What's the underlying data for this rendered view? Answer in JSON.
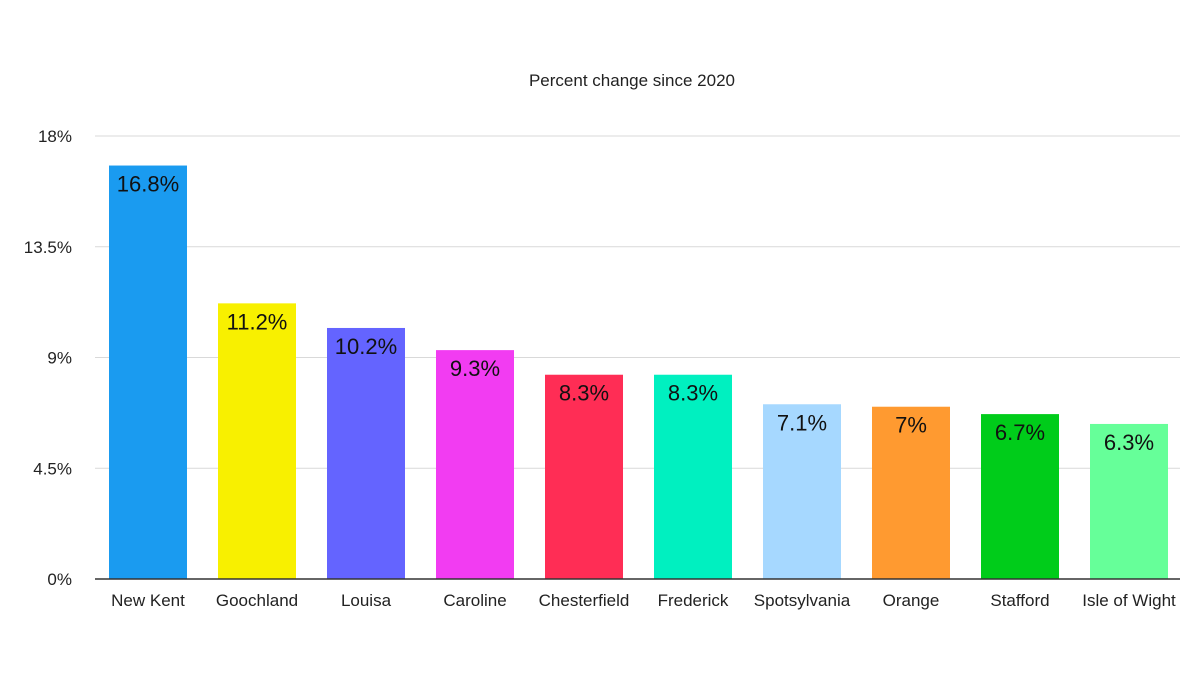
{
  "chart_data": {
    "type": "bar",
    "title": "Percent change since 2020",
    "xlabel": "",
    "ylabel": "",
    "categories": [
      "New Kent",
      "Goochland",
      "Louisa",
      "Caroline",
      "Chesterfield",
      "Frederick",
      "Spotsylvania",
      "Orange",
      "Stafford",
      "Isle of Wight"
    ],
    "values": [
      16.8,
      11.2,
      10.2,
      9.3,
      8.3,
      8.3,
      7.1,
      7.0,
      6.7,
      6.3
    ],
    "data_labels": [
      "16.8%",
      "11.2%",
      "10.2%",
      "9.3%",
      "8.3%",
      "8.3%",
      "7.1%",
      "7%",
      "6.7%",
      "6.3%"
    ],
    "colors": [
      "#1a9bf0",
      "#f8f000",
      "#6464ff",
      "#f23cf2",
      "#ff2d55",
      "#00f0c0",
      "#a6d8ff",
      "#ff9a30",
      "#00cc1a",
      "#66ff99"
    ],
    "ylim": [
      0,
      18
    ],
    "yticks": [
      0,
      4.5,
      9,
      13.5,
      18
    ],
    "ytick_labels": [
      "0%",
      "4.5%",
      "9%",
      "13.5%",
      "18%"
    ],
    "grid": true,
    "legend": "none"
  }
}
